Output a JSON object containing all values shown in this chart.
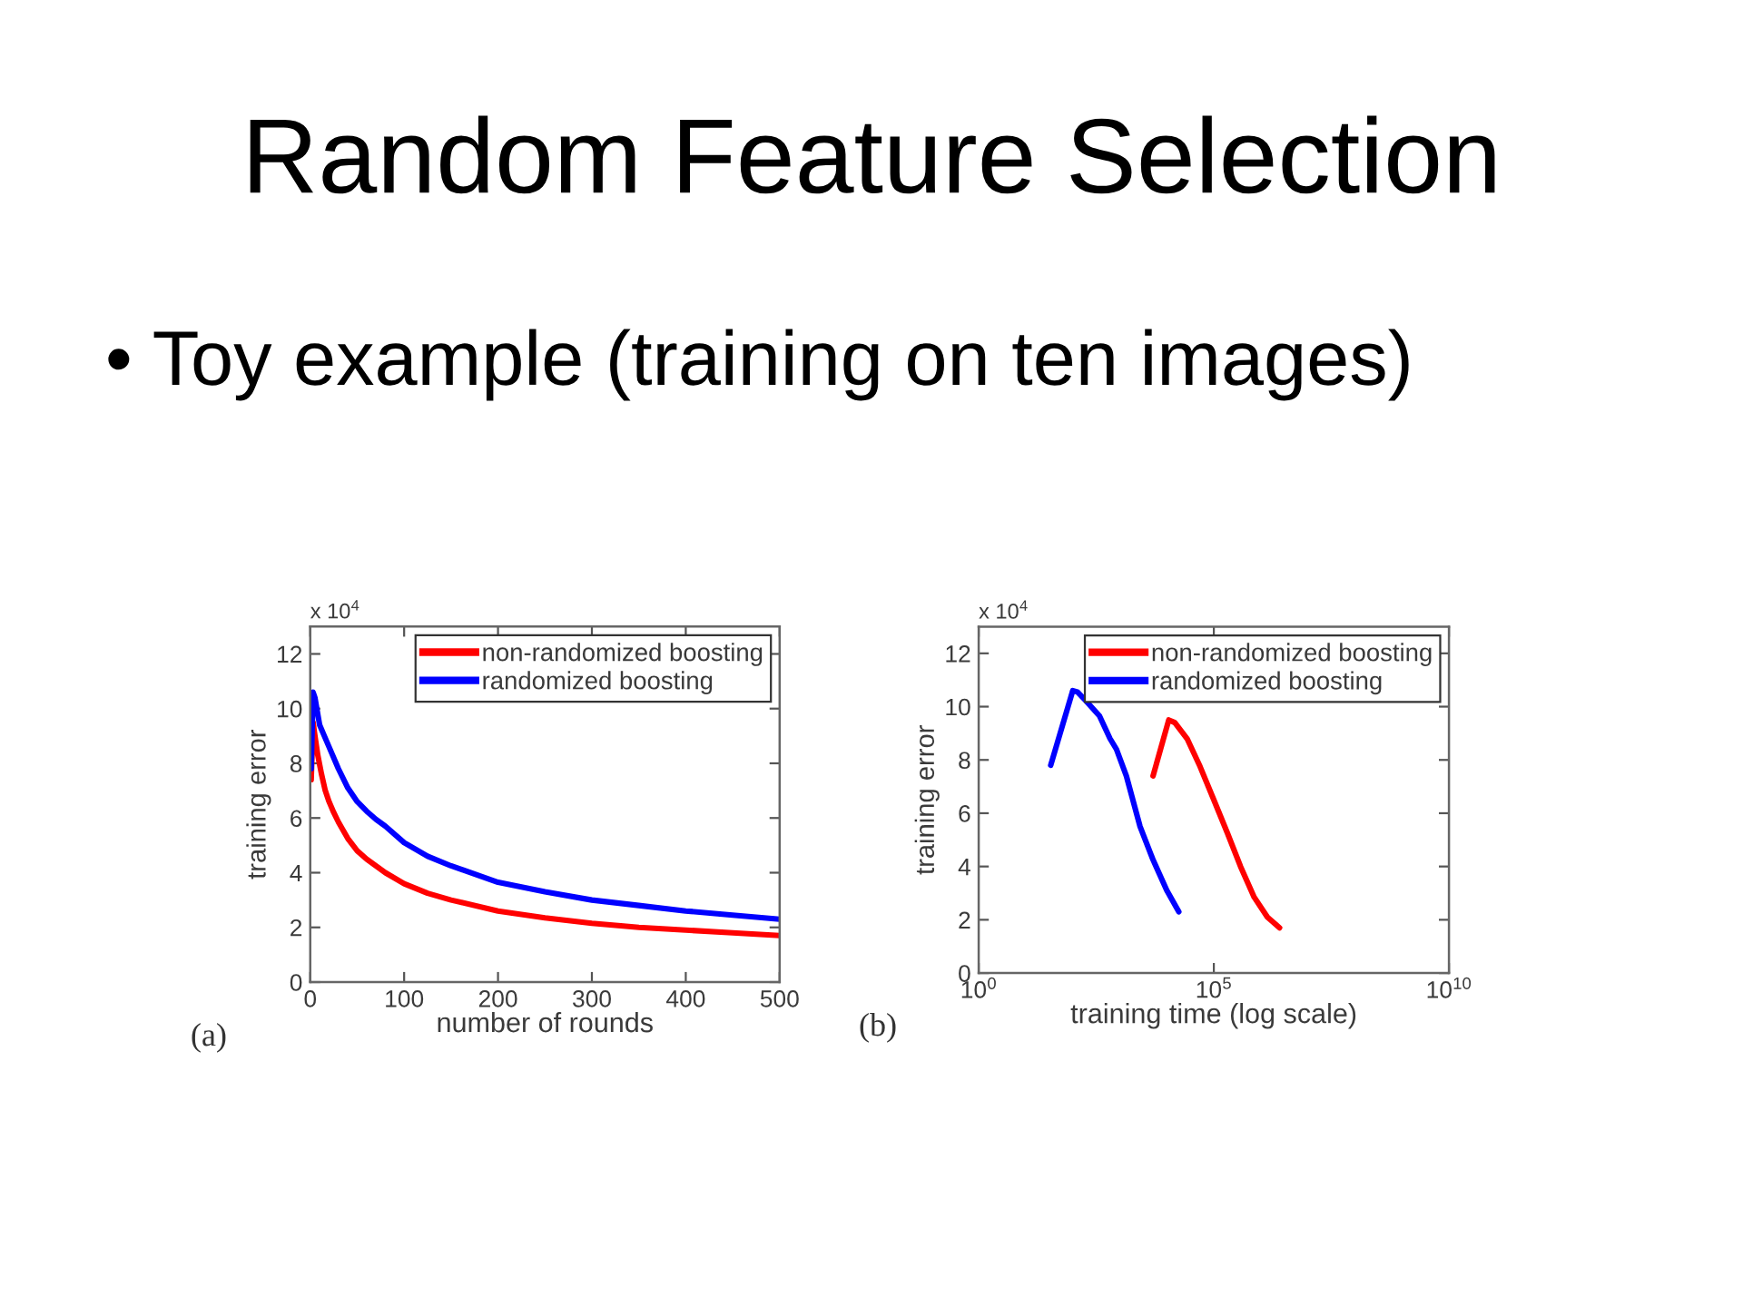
{
  "chart_data": [
    {
      "type": "line",
      "title": "Random Feature Selection",
      "subtitle": "• Toy example (training on ten images)",
      "xlabel": "number of rounds",
      "ylabel": "training error",
      "annotations": [
        "x 10$^{4}$",
        "(a)"
      ],
      "xlim": [
        0,
        500
      ],
      "xticks": [
        0,
        100,
        200,
        300,
        400,
        500
      ],
      "ylim": [
        0,
        13
      ],
      "yticks": [
        0,
        2,
        4,
        6,
        8,
        10,
        12
      ],
      "legend": "top right",
      "series": [
        {
          "name": "non-randomized boosting",
          "color": "#ff0000",
          "x": [
            1,
            3,
            5,
            8,
            12,
            16,
            20,
            25,
            30,
            40,
            50,
            60,
            80,
            100,
            125,
            150,
            200,
            250,
            300,
            350,
            400,
            450,
            500
          ],
          "values": [
            7.4,
            9.5,
            9.0,
            8.3,
            7.6,
            7.0,
            6.6,
            6.2,
            5.85,
            5.25,
            4.8,
            4.5,
            4.0,
            3.6,
            3.25,
            3.0,
            2.6,
            2.35,
            2.15,
            2.0,
            1.9,
            1.8,
            1.7
          ]
        },
        {
          "name": "randomized boosting",
          "color": "#0000ff",
          "x": [
            1,
            3,
            5,
            10,
            15,
            20,
            30,
            40,
            50,
            60,
            70,
            80,
            100,
            125,
            150,
            200,
            250,
            300,
            350,
            400,
            450,
            500
          ],
          "values": [
            7.8,
            10.6,
            10.4,
            9.4,
            9.0,
            8.6,
            7.8,
            7.1,
            6.6,
            6.25,
            5.95,
            5.7,
            5.1,
            4.6,
            4.25,
            3.65,
            3.3,
            3.0,
            2.8,
            2.6,
            2.45,
            2.3
          ]
        }
      ]
    },
    {
      "type": "line",
      "xlabel": "training time (log scale)",
      "ylabel": "training error",
      "annotations": [
        "x 10$^{4}$",
        "(b)"
      ],
      "log": "x",
      "xlim": [
        1,
        10000000000
      ],
      "xticks": [
        {
          "value": 1,
          "label": "10$^{0}$"
        },
        {
          "value": 100000,
          "label": "10$^{5}$"
        },
        {
          "value": 10000000000,
          "label": "10$^{10}$"
        }
      ],
      "ylim": [
        0,
        13
      ],
      "yticks": [
        0,
        2,
        4,
        6,
        8,
        10,
        12
      ],
      "legend": "top right",
      "series": [
        {
          "name": "non-randomized boosting",
          "color": "#ff0000",
          "x": [
            5100,
            11000,
            14800,
            27000,
            51000,
            100000,
            195000,
            370000,
            720000,
            1380000,
            2500000
          ],
          "values": [
            7.4,
            9.5,
            9.4,
            8.8,
            7.75,
            6.5,
            5.25,
            4.0,
            2.85,
            2.1,
            1.7
          ]
        },
        {
          "name": "randomized boosting",
          "color": "#0000ff",
          "x": [
            34,
            100,
            126,
            195,
            370,
            620,
            850,
            1380,
            2700,
            5100,
            10000,
            18000
          ],
          "values": [
            7.8,
            10.6,
            10.55,
            10.2,
            9.65,
            8.8,
            8.4,
            7.4,
            5.5,
            4.25,
            3.1,
            2.3
          ]
        }
      ]
    }
  ]
}
